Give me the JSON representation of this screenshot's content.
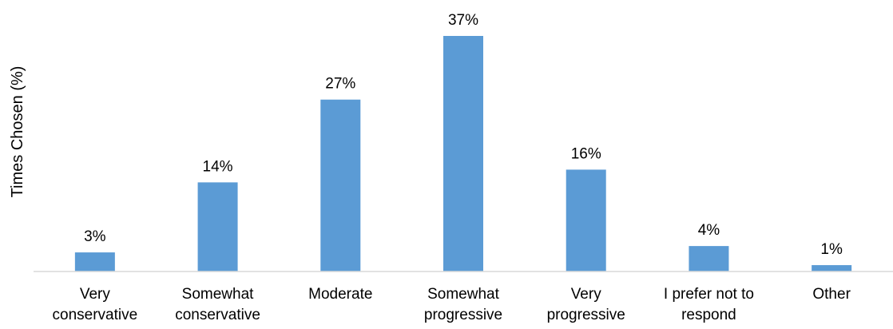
{
  "chart_data": {
    "type": "bar",
    "title": "",
    "xlabel": "",
    "ylabel": "Times Chosen (%)",
    "categories": [
      [
        "Very",
        "conservative"
      ],
      [
        "Somewhat",
        "conservative"
      ],
      [
        "Moderate"
      ],
      [
        "Somewhat",
        "progressive"
      ],
      [
        "Very",
        "progressive"
      ],
      [
        "I prefer not to",
        "respond"
      ],
      [
        "Other"
      ]
    ],
    "values": [
      3,
      14,
      27,
      37,
      16,
      4,
      1
    ],
    "value_labels": [
      "3%",
      "14%",
      "27%",
      "37%",
      "16%",
      "4%",
      "1%"
    ],
    "ylim": [
      0,
      37
    ],
    "grid": false,
    "legend": "none",
    "bar_color": "#5B9BD5",
    "axis_color": "#D9D9D9"
  }
}
